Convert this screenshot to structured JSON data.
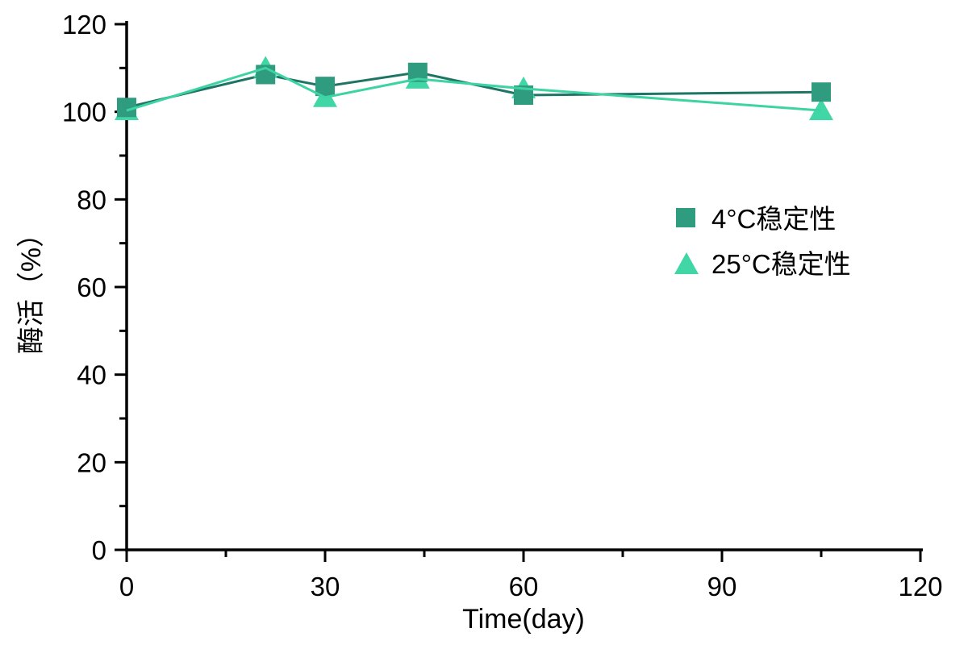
{
  "chart_data": {
    "type": "line",
    "title": "",
    "xlabel": "Time(day)",
    "ylabel": "酶活（%）",
    "xlim": [
      0,
      120
    ],
    "ylim": [
      0,
      120
    ],
    "grid": false,
    "legend_position": "center-right",
    "axis_color": "#000000",
    "text_color": "#000000",
    "x_major_ticks": [
      0,
      30,
      60,
      90,
      120
    ],
    "x_minor_ticks": [
      15,
      45,
      75,
      105
    ],
    "y_major_ticks": [
      0,
      20,
      40,
      60,
      80,
      100,
      120
    ],
    "y_minor_ticks": [
      10,
      30,
      50,
      70,
      90,
      110
    ],
    "x_tick_labels": [
      "0",
      "30",
      "60",
      "90",
      "120"
    ],
    "y_tick_labels": [
      "0",
      "20",
      "40",
      "60",
      "80",
      "100",
      "120"
    ],
    "series": [
      {
        "name": "4°C稳定性",
        "marker": "square",
        "line_color": "#1E7565",
        "marker_color": "#2F9C80",
        "x": [
          0,
          21,
          30,
          44,
          60,
          105
        ],
        "y": [
          101,
          108.5,
          105.8,
          109,
          103.8,
          104.5
        ]
      },
      {
        "name": "25°C稳定性",
        "marker": "triangle",
        "line_color": "#3DD3A2",
        "marker_color": "#41D6A5",
        "x": [
          0,
          21,
          30,
          44,
          60,
          105
        ],
        "y": [
          100.3,
          110,
          103.3,
          107.5,
          105.3,
          100.3
        ]
      }
    ]
  }
}
